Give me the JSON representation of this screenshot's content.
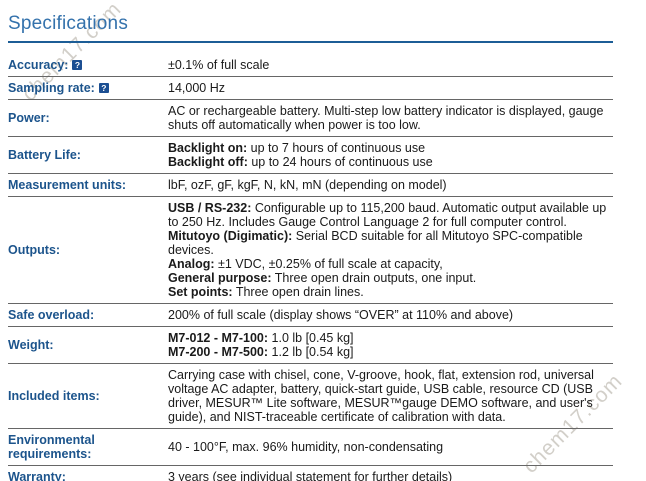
{
  "title": "Specifications",
  "watermark": {
    "text": "chem17.com"
  },
  "help_icon": {
    "glyph": "?"
  },
  "colors": {
    "title_blue": "#3472ac",
    "rule_blue": "#1c5d96",
    "label_blue": "#1c548c",
    "help_icon_blue": "#1c4f92",
    "divider_gray": "#666666",
    "bottom_border_black": "#000000",
    "watermark_gray": "#d2cfc9"
  },
  "table": {
    "rows": [
      {
        "label": "Accuracy:",
        "help": true,
        "paras": [
          [
            {
              "text": "±0.1% of full scale",
              "bold": false
            }
          ]
        ]
      },
      {
        "label": "Sampling rate:",
        "help": true,
        "paras": [
          [
            {
              "text": "14,000 Hz",
              "bold": false
            }
          ]
        ]
      },
      {
        "label": "Power:",
        "help": false,
        "paras": [
          [
            {
              "text": "AC or rechargeable battery. Multi-step low battery indicator is displayed, gauge shuts off automatically when power is too low.",
              "bold": false
            }
          ]
        ]
      },
      {
        "label": "Battery Life:",
        "help": false,
        "paras": [
          [
            {
              "text": "Backlight on:",
              "bold": true
            },
            {
              "text": " up to 7 hours of continuous use",
              "bold": false
            }
          ],
          [
            {
              "text": "Backlight off:",
              "bold": true
            },
            {
              "text": " up to 24 hours of continuous use",
              "bold": false
            }
          ]
        ]
      },
      {
        "label": "Measurement units:",
        "help": false,
        "paras": [
          [
            {
              "text": "lbF, ozF, gF, kgF, N, kN, mN (depending on model)",
              "bold": false
            }
          ]
        ]
      },
      {
        "label": "Outputs:",
        "help": false,
        "paras": [
          [
            {
              "text": "USB / RS-232:",
              "bold": true
            },
            {
              "text": " Configurable up to 115,200 baud. Automatic output available up to 250 Hz. Includes Gauge Control Language 2 for full computer control.",
              "bold": false
            }
          ],
          [
            {
              "text": "Mitutoyo (Digimatic):",
              "bold": true
            },
            {
              "text": " Serial BCD suitable for all Mitutoyo SPC-compatible devices.",
              "bold": false
            }
          ],
          [
            {
              "text": "Analog:",
              "bold": true
            },
            {
              "text": " ±1 VDC, ±0.25% of full scale at capacity,",
              "bold": false
            }
          ],
          [
            {
              "text": "General purpose:",
              "bold": true
            },
            {
              "text": " Three open drain outputs, one input.",
              "bold": false
            }
          ],
          [
            {
              "text": "Set points:",
              "bold": true
            },
            {
              "text": " Three open drain lines.",
              "bold": false
            }
          ]
        ]
      },
      {
        "label": "Safe overload:",
        "help": false,
        "paras": [
          [
            {
              "text": "200% of full scale (display shows “OVER” at 110% and above)",
              "bold": false
            }
          ]
        ]
      },
      {
        "label": "Weight:",
        "help": false,
        "paras": [
          [
            {
              "text": "M7-012 - M7-100:",
              "bold": true
            },
            {
              "text": " 1.0 lb [0.45 kg]",
              "bold": false
            }
          ],
          [
            {
              "text": "M7-200 - M7-500:",
              "bold": true
            },
            {
              "text": " 1.2 lb [0.54 kg]",
              "bold": false
            }
          ]
        ]
      },
      {
        "label": "Included items:",
        "help": false,
        "paras": [
          [
            {
              "text": "Carrying case with chisel, cone, V-groove, hook, flat, extension rod, universal voltage AC adapter, battery, quick-start guide, USB cable, resource CD (USB driver, MESUR™ Lite software, MESUR™gauge DEMO software, and user's guide), and NIST-traceable certificate of calibration with data.",
              "bold": false
            }
          ]
        ]
      },
      {
        "label": "Environmental requirements:",
        "help": false,
        "paras": [
          [
            {
              "text": "40 - 100°F, max. 96% humidity, non-condensating",
              "bold": false
            }
          ]
        ]
      },
      {
        "label": "Warranty:",
        "help": false,
        "paras": [
          [
            {
              "text": "3 years (see individual statement for further details)",
              "bold": false
            }
          ]
        ]
      }
    ]
  }
}
